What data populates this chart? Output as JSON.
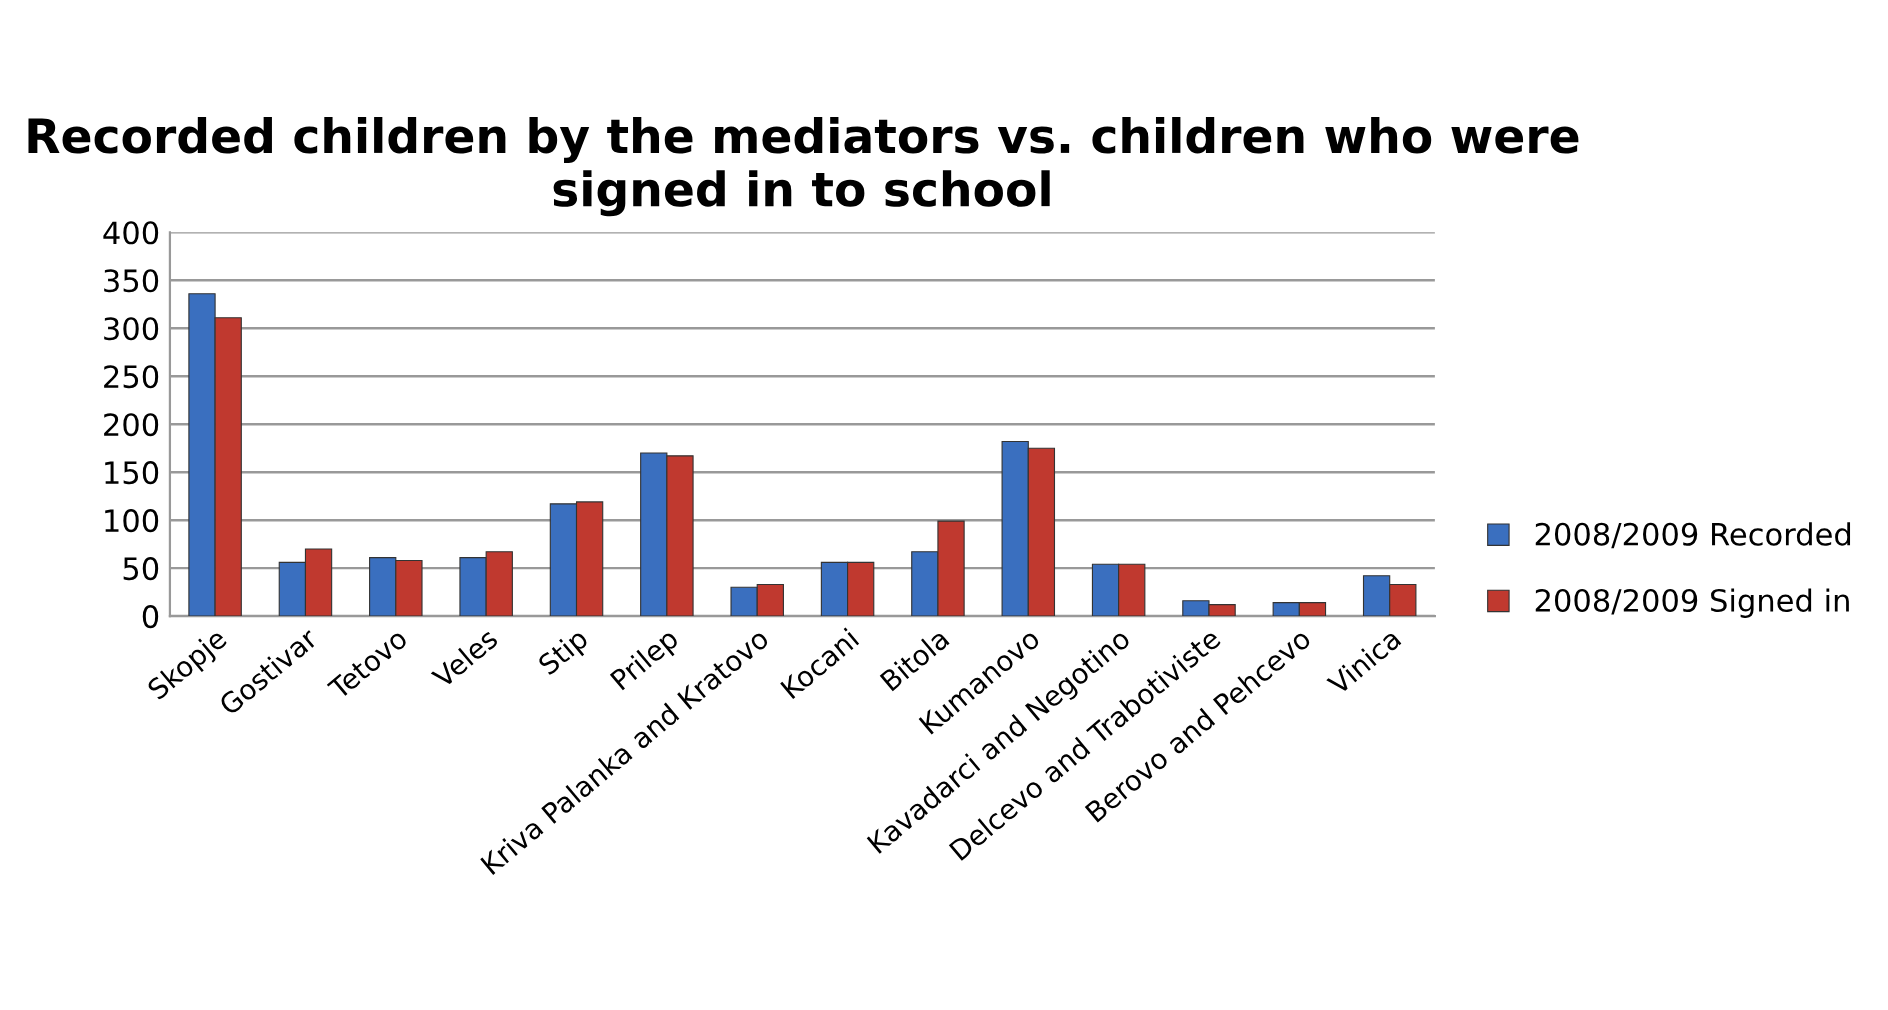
{
  "chart_data": {
    "type": "bar",
    "title": "Recorded children by the mediators vs. children who were signed in to school",
    "categories": [
      "Skopje",
      "Gostivar",
      "Tetovo",
      "Veles",
      "Stip",
      "Prilep",
      "Kriva Palanka and Kratovo",
      "Kocani",
      "Bitola",
      "Kumanovo",
      "Kavadarci and Negotino",
      "Delcevo and Trabotiviste",
      "Berovo and Pehcevo",
      "Vinica"
    ],
    "series": [
      {
        "name": "2008/2009 Recorded",
        "color": "#3a6fbf",
        "values": [
          336,
          56,
          61,
          61,
          117,
          170,
          30,
          56,
          67,
          182,
          54,
          16,
          14,
          42
        ]
      },
      {
        "name": "2008/2009 Signed in",
        "color": "#c0392f",
        "values": [
          311,
          70,
          58,
          67,
          119,
          167,
          33,
          56,
          99,
          175,
          54,
          12,
          14,
          33
        ]
      }
    ],
    "ylim": [
      0,
      400
    ],
    "yticks": [
      0,
      50,
      100,
      150,
      200,
      250,
      300,
      350,
      400
    ],
    "grid": "y",
    "legend": "right"
  }
}
